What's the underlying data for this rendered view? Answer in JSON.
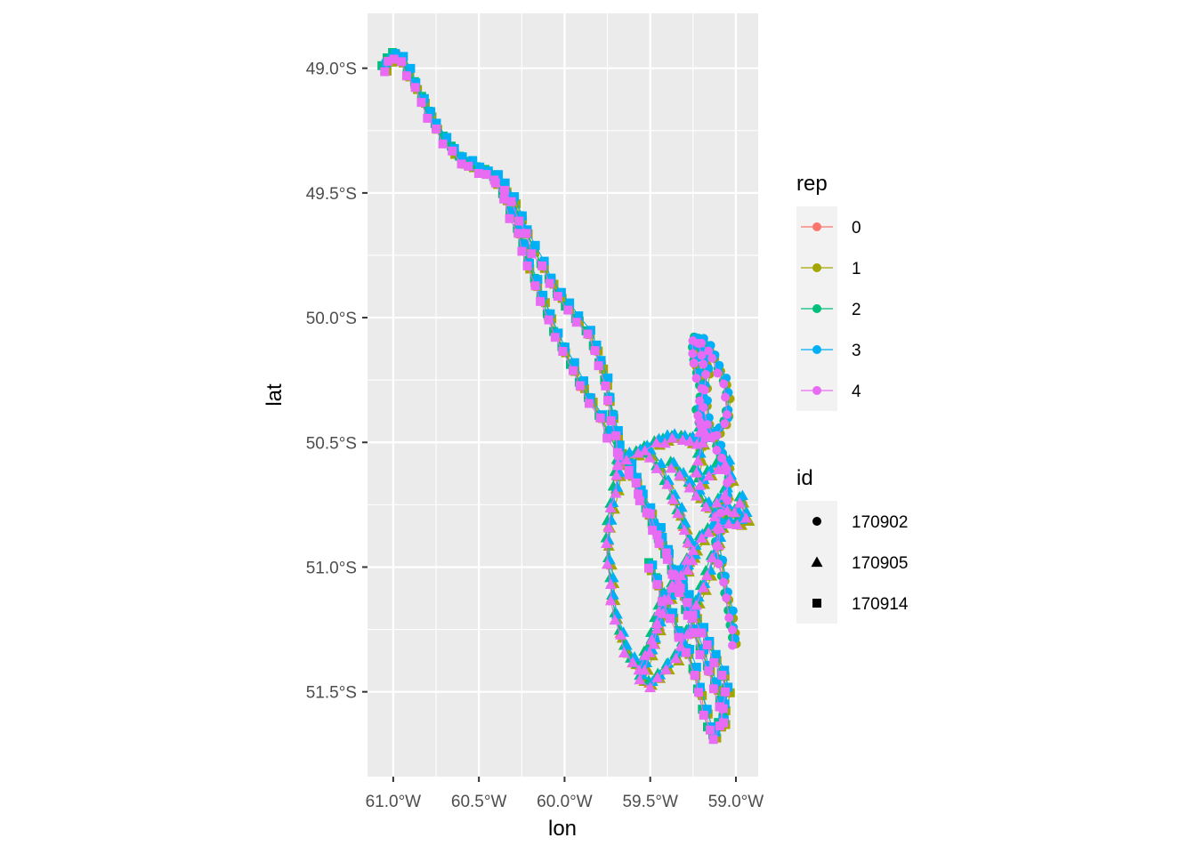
{
  "chart_data": {
    "type": "scatter",
    "xlabel": "lon",
    "ylabel": "lat",
    "xlim": [
      -61.15,
      -58.87
    ],
    "ylim": [
      -51.84,
      -48.78
    ],
    "x_ticks": [
      {
        "value": -61.0,
        "label": "61.0°W"
      },
      {
        "value": -60.5,
        "label": "60.5°W"
      },
      {
        "value": -60.0,
        "label": "60.0°W"
      },
      {
        "value": -59.5,
        "label": "59.5°W"
      },
      {
        "value": -59.0,
        "label": "59.0°W"
      }
    ],
    "y_ticks": [
      {
        "value": -49.0,
        "label": "49.0°S"
      },
      {
        "value": -49.5,
        "label": "49.5°S"
      },
      {
        "value": -50.0,
        "label": "50.0°S"
      },
      {
        "value": -50.5,
        "label": "50.5°S"
      },
      {
        "value": -51.0,
        "label": "51.0°S"
      },
      {
        "value": -51.5,
        "label": "51.5°S"
      }
    ],
    "legend_placement": "right",
    "legends": {
      "color": {
        "title": "rep",
        "entries": [
          {
            "label": "0",
            "color": "#F8766D"
          },
          {
            "label": "1",
            "color": "#A3A500"
          },
          {
            "label": "2",
            "color": "#00BF7D"
          },
          {
            "label": "3",
            "color": "#00B0F6"
          },
          {
            "label": "4",
            "color": "#E76BF3"
          }
        ]
      },
      "shape": {
        "title": "id",
        "entries": [
          {
            "label": "170902",
            "shape": "circle"
          },
          {
            "label": "170905",
            "shape": "triangle"
          },
          {
            "label": "170914",
            "shape": "square"
          }
        ]
      }
    },
    "series": [
      {
        "id": "170902",
        "shape": "circle",
        "points": [
          [
            -59.21,
            -50.1
          ],
          [
            -59.2,
            -50.14
          ],
          [
            -59.18,
            -50.18
          ],
          [
            -59.17,
            -50.22
          ],
          [
            -59.18,
            -50.28
          ],
          [
            -59.2,
            -50.33
          ],
          [
            -59.22,
            -50.38
          ],
          [
            -59.2,
            -50.43
          ],
          [
            -59.17,
            -50.47
          ],
          [
            -59.14,
            -50.48
          ],
          [
            -59.1,
            -50.46
          ],
          [
            -59.06,
            -50.42
          ],
          [
            -59.05,
            -50.38
          ],
          [
            -59.05,
            -50.31
          ],
          [
            -59.07,
            -50.26
          ],
          [
            -59.1,
            -50.21
          ],
          [
            -59.13,
            -50.16
          ],
          [
            -59.16,
            -50.12
          ],
          [
            -59.19,
            -50.1
          ]
        ]
      },
      {
        "id": "170902",
        "shape": "circle",
        "points": [
          [
            -59.24,
            -50.09
          ],
          [
            -59.25,
            -50.13
          ],
          [
            -59.24,
            -50.18
          ],
          [
            -59.22,
            -50.23
          ],
          [
            -59.2,
            -50.28
          ],
          [
            -59.18,
            -50.35
          ],
          [
            -59.16,
            -50.42
          ],
          [
            -59.13,
            -50.47
          ],
          [
            -59.1,
            -50.52
          ],
          [
            -59.08,
            -50.56
          ],
          [
            -59.05,
            -50.6
          ],
          [
            -59.04,
            -50.66
          ],
          [
            -59.05,
            -50.72
          ],
          [
            -59.08,
            -50.78
          ],
          [
            -59.1,
            -50.84
          ],
          [
            -59.11,
            -50.91
          ],
          [
            -59.09,
            -50.98
          ],
          [
            -59.07,
            -51.05
          ],
          [
            -59.05,
            -51.12
          ],
          [
            -59.03,
            -51.19
          ],
          [
            -59.02,
            -51.25
          ],
          [
            -59.01,
            -51.3
          ]
        ]
      },
      {
        "id": "170905",
        "shape": "triangle",
        "points": [
          [
            -59.68,
            -50.58
          ],
          [
            -59.63,
            -50.56
          ],
          [
            -59.57,
            -50.54
          ],
          [
            -59.52,
            -50.52
          ],
          [
            -59.46,
            -50.5
          ],
          [
            -59.41,
            -50.49
          ],
          [
            -59.36,
            -50.48
          ],
          [
            -59.31,
            -50.48
          ],
          [
            -59.26,
            -50.49
          ],
          [
            -59.22,
            -50.5
          ],
          [
            -59.21,
            -50.45
          ],
          [
            -59.2,
            -50.4
          ],
          [
            -59.18,
            -50.44
          ],
          [
            -59.19,
            -50.5
          ],
          [
            -59.21,
            -50.56
          ],
          [
            -59.23,
            -50.62
          ],
          [
            -59.2,
            -50.66
          ],
          [
            -59.15,
            -50.63
          ],
          [
            -59.1,
            -50.6
          ],
          [
            -59.05,
            -50.58
          ],
          [
            -59.03,
            -50.64
          ],
          [
            -59.06,
            -50.7
          ],
          [
            -59.1,
            -50.74
          ],
          [
            -59.05,
            -50.76
          ],
          [
            -59.0,
            -50.78
          ],
          [
            -58.97,
            -50.73
          ],
          [
            -58.94,
            -50.8
          ],
          [
            -58.98,
            -50.82
          ],
          [
            -59.04,
            -50.82
          ],
          [
            -59.1,
            -50.83
          ],
          [
            -59.15,
            -50.85
          ],
          [
            -59.2,
            -50.88
          ],
          [
            -59.24,
            -50.92
          ],
          [
            -59.28,
            -50.97
          ],
          [
            -59.32,
            -51.02
          ],
          [
            -59.36,
            -51.07
          ],
          [
            -59.39,
            -51.12
          ],
          [
            -59.42,
            -51.18
          ],
          [
            -59.45,
            -51.24
          ],
          [
            -59.48,
            -51.3
          ],
          [
            -59.52,
            -51.35
          ],
          [
            -59.56,
            -51.4
          ],
          [
            -59.6,
            -51.38
          ],
          [
            -59.64,
            -51.33
          ],
          [
            -59.67,
            -51.27
          ],
          [
            -59.7,
            -51.2
          ],
          [
            -59.72,
            -51.13
          ],
          [
            -59.73,
            -51.06
          ],
          [
            -59.74,
            -50.98
          ],
          [
            -59.75,
            -50.9
          ],
          [
            -59.74,
            -50.83
          ],
          [
            -59.72,
            -50.76
          ],
          [
            -59.7,
            -50.69
          ],
          [
            -59.69,
            -50.63
          ],
          [
            -59.68,
            -50.58
          ]
        ]
      },
      {
        "id": "170905",
        "shape": "triangle",
        "points": [
          [
            -59.5,
            -50.55
          ],
          [
            -59.45,
            -50.6
          ],
          [
            -59.4,
            -50.66
          ],
          [
            -59.36,
            -50.72
          ],
          [
            -59.33,
            -50.78
          ],
          [
            -59.3,
            -50.84
          ],
          [
            -59.27,
            -50.9
          ],
          [
            -59.25,
            -50.96
          ],
          [
            -59.28,
            -51.01
          ],
          [
            -59.32,
            -51.05
          ],
          [
            -59.37,
            -51.08
          ],
          [
            -59.41,
            -51.12
          ],
          [
            -59.44,
            -51.17
          ],
          [
            -59.46,
            -51.22
          ],
          [
            -59.48,
            -51.28
          ],
          [
            -59.5,
            -51.34
          ],
          [
            -59.53,
            -51.4
          ],
          [
            -59.55,
            -51.45
          ],
          [
            -59.5,
            -51.47
          ],
          [
            -59.45,
            -51.44
          ],
          [
            -59.4,
            -51.4
          ],
          [
            -59.35,
            -51.36
          ],
          [
            -59.31,
            -51.31
          ],
          [
            -59.28,
            -51.26
          ],
          [
            -59.25,
            -51.2
          ],
          [
            -59.22,
            -51.14
          ],
          [
            -59.19,
            -51.08
          ],
          [
            -59.16,
            -51.02
          ],
          [
            -59.13,
            -50.96
          ],
          [
            -59.1,
            -50.9
          ],
          [
            -59.08,
            -50.84
          ],
          [
            -59.12,
            -50.79
          ],
          [
            -59.17,
            -50.75
          ],
          [
            -59.22,
            -50.71
          ],
          [
            -59.27,
            -50.67
          ],
          [
            -59.32,
            -50.63
          ],
          [
            -59.37,
            -50.59
          ]
        ]
      },
      {
        "id": "170914",
        "shape": "square",
        "points": [
          [
            -61.05,
            -49.0
          ],
          [
            -61.02,
            -48.97
          ],
          [
            -60.99,
            -48.95
          ],
          [
            -60.95,
            -48.97
          ],
          [
            -60.91,
            -49.02
          ],
          [
            -60.87,
            -49.07
          ],
          [
            -60.83,
            -49.13
          ],
          [
            -60.79,
            -49.19
          ],
          [
            -60.75,
            -49.24
          ],
          [
            -60.7,
            -49.29
          ],
          [
            -60.65,
            -49.33
          ],
          [
            -60.6,
            -49.37
          ],
          [
            -60.55,
            -49.39
          ],
          [
            -60.5,
            -49.41
          ],
          [
            -60.45,
            -49.42
          ],
          [
            -60.4,
            -49.44
          ],
          [
            -60.35,
            -49.48
          ],
          [
            -60.3,
            -49.53
          ],
          [
            -60.26,
            -49.6
          ],
          [
            -60.22,
            -49.66
          ],
          [
            -60.18,
            -49.73
          ],
          [
            -60.13,
            -49.79
          ],
          [
            -60.08,
            -49.85
          ],
          [
            -60.03,
            -49.91
          ],
          [
            -59.98,
            -49.96
          ],
          [
            -59.92,
            -50.01
          ],
          [
            -59.86,
            -50.06
          ],
          [
            -59.82,
            -50.12
          ],
          [
            -59.79,
            -50.19
          ],
          [
            -59.76,
            -50.26
          ],
          [
            -59.74,
            -50.33
          ],
          [
            -59.72,
            -50.4
          ],
          [
            -59.7,
            -50.47
          ],
          [
            -59.68,
            -50.53
          ]
        ]
      },
      {
        "id": "170914",
        "shape": "square",
        "points": [
          [
            -60.4,
            -49.45
          ],
          [
            -60.35,
            -49.52
          ],
          [
            -60.31,
            -49.59
          ],
          [
            -60.27,
            -49.66
          ],
          [
            -60.24,
            -49.72
          ],
          [
            -60.21,
            -49.79
          ],
          [
            -60.17,
            -49.86
          ],
          [
            -60.13,
            -49.93
          ],
          [
            -60.09,
            -50.0
          ],
          [
            -60.05,
            -50.07
          ],
          [
            -60.0,
            -50.13
          ],
          [
            -59.95,
            -50.2
          ],
          [
            -59.9,
            -50.27
          ],
          [
            -59.85,
            -50.33
          ],
          [
            -59.79,
            -50.4
          ],
          [
            -59.74,
            -50.47
          ],
          [
            -59.68,
            -50.55
          ],
          [
            -59.62,
            -50.62
          ],
          [
            -59.56,
            -50.7
          ],
          [
            -59.5,
            -50.78
          ],
          [
            -59.45,
            -50.86
          ],
          [
            -59.4,
            -50.94
          ],
          [
            -59.36,
            -51.02
          ],
          [
            -59.32,
            -51.1
          ],
          [
            -59.28,
            -51.18
          ],
          [
            -59.24,
            -51.26
          ],
          [
            -59.2,
            -51.34
          ],
          [
            -59.16,
            -51.41
          ],
          [
            -59.12,
            -51.48
          ],
          [
            -59.09,
            -51.55
          ],
          [
            -59.07,
            -51.62
          ]
        ]
      },
      {
        "id": "170914",
        "shape": "square",
        "points": [
          [
            -59.5,
            -51.0
          ],
          [
            -59.46,
            -51.06
          ],
          [
            -59.42,
            -51.13
          ],
          [
            -59.38,
            -51.2
          ],
          [
            -59.33,
            -51.27
          ],
          [
            -59.28,
            -51.34
          ],
          [
            -59.24,
            -51.42
          ],
          [
            -59.21,
            -51.5
          ],
          [
            -59.18,
            -51.58
          ],
          [
            -59.15,
            -51.65
          ],
          [
            -59.12,
            -51.68
          ],
          [
            -59.09,
            -51.63
          ],
          [
            -59.07,
            -51.56
          ],
          [
            -59.05,
            -51.49
          ],
          [
            -59.08,
            -51.43
          ],
          [
            -59.12,
            -51.37
          ],
          [
            -59.16,
            -51.31
          ],
          [
            -59.2,
            -51.25
          ],
          [
            -59.24,
            -51.19
          ],
          [
            -59.28,
            -51.13
          ],
          [
            -59.32,
            -51.08
          ],
          [
            -59.36,
            -51.02
          ],
          [
            -59.4,
            -50.96
          ],
          [
            -59.44,
            -50.9
          ],
          [
            -59.48,
            -50.84
          ],
          [
            -59.52,
            -50.78
          ],
          [
            -59.55,
            -50.72
          ],
          [
            -59.58,
            -50.66
          ],
          [
            -59.62,
            -50.6
          ]
        ]
      }
    ]
  }
}
